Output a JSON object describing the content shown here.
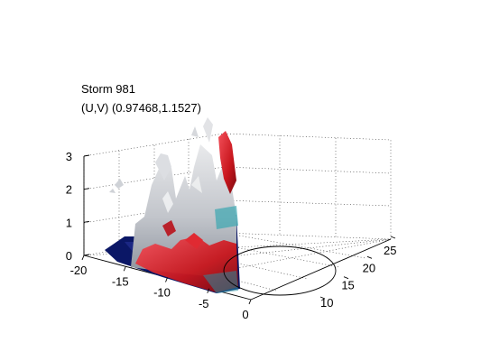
{
  "chart_data": {
    "type": "surface3d",
    "title_lines": [
      "Storm 981",
      "(U,V) (0.97468,1.1527)"
    ],
    "axes": {
      "x": {
        "ticks": [
          -20,
          -15,
          -10,
          -5,
          0
        ],
        "range": [
          -20,
          0
        ]
      },
      "y": {
        "ticks": [
          10,
          15,
          20,
          25
        ],
        "range": [
          10,
          25
        ]
      },
      "z": {
        "ticks": [
          0,
          1,
          2,
          3
        ],
        "range": [
          0,
          3
        ]
      }
    },
    "grid": true,
    "colors": {
      "surface_gray": "#b9bcc2",
      "surface_red": "#c8161d",
      "base_navy": "#0b1766",
      "accent_teal": "#33b3b3",
      "box": "#000000"
    }
  }
}
